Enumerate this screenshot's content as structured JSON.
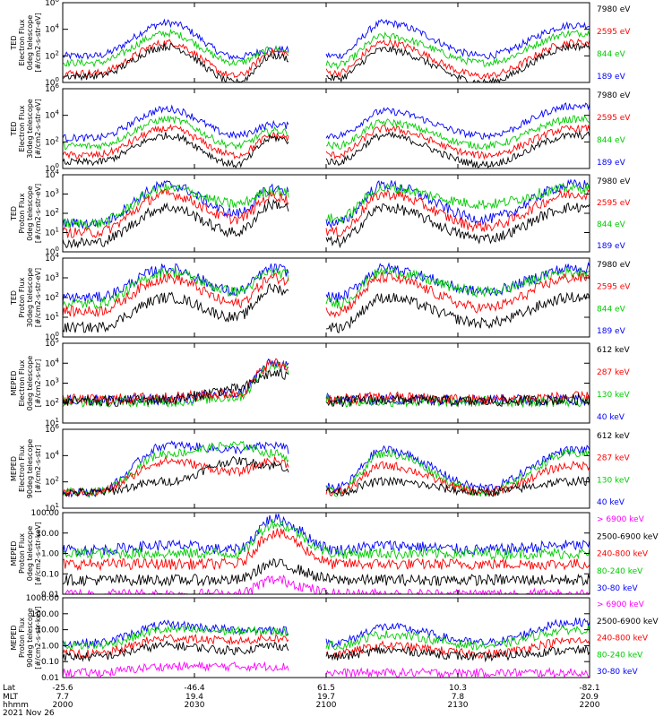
{
  "chart_data": {
    "type": "line",
    "x_axis": {
      "rows": [
        {
          "label": "Lat",
          "values": [
            "-25.6",
            "-46.4",
            "61.5",
            "10.3",
            "-82.1"
          ]
        },
        {
          "label": "MLT",
          "values": [
            "7.7",
            "19.4",
            "19.7",
            "7.8",
            "20.9"
          ]
        },
        {
          "label": "hhmm",
          "values": [
            "2000",
            "2030",
            "2100",
            "2130",
            "2200"
          ]
        }
      ],
      "date": "2021 Nov 26",
      "tick_times_hhmm": [
        "2000",
        "2030",
        "2100",
        "2130",
        "2200"
      ]
    },
    "panels": [
      {
        "ylabel": [
          "TED",
          "Electron Flux",
          "0deg telescope",
          "[#/cm2-s-str-eV]"
        ],
        "yscale": "log",
        "ylim": [
          1,
          1000000
        ],
        "ytick_labels": [
          "10^0",
          "10^2",
          "10^4",
          "10^6"
        ],
        "series": [
          {
            "name": "189 eV",
            "color": "#0000ff",
            "values": [
              100,
              30000,
              80,
              300,
              100,
              30000,
              100,
              20000
            ]
          },
          {
            "name": "844 eV",
            "color": "#00cc00",
            "values": [
              30,
              5000,
              30,
              300,
              20,
              3000,
              30,
              5000
            ]
          },
          {
            "name": "2595 eV",
            "color": "#ff0000",
            "values": [
              5,
              1000,
              3,
              200,
              5,
              1000,
              3,
              1000
            ]
          },
          {
            "name": "7980 eV",
            "color": "#000000",
            "values": [
              3,
              500,
              1,
              100,
              2,
              300,
              1,
              500
            ]
          }
        ]
      },
      {
        "ylabel": [
          "TED",
          "Electron Flux",
          "30deg telescope",
          "[#/cm2-s-str-eV]"
        ],
        "yscale": "log",
        "ylim": [
          1,
          1000000
        ],
        "ytick_labels": [
          "10^0",
          "10^2",
          "10^4",
          "10^6"
        ],
        "series": [
          {
            "name": "189 eV",
            "color": "#0000ff",
            "values": [
              200,
              30000,
              300,
              2000,
              300,
              20000,
              300,
              50000
            ]
          },
          {
            "name": "844 eV",
            "color": "#00cc00",
            "values": [
              50,
              5000,
              50,
              700,
              50,
              3000,
              50,
              5000
            ]
          },
          {
            "name": "2595 eV",
            "color": "#ff0000",
            "values": [
              10,
              1000,
              10,
              300,
              10,
              1000,
              10,
              1000
            ]
          },
          {
            "name": "7980 eV",
            "color": "#000000",
            "values": [
              3,
              300,
              2,
              200,
              3,
              300,
              2,
              300
            ]
          }
        ]
      },
      {
        "ylabel": [
          "TED",
          "Proton Flux",
          "0deg telescope",
          "[#/cm2-s-str-eV]"
        ],
        "yscale": "log",
        "ylim": [
          1,
          10000
        ],
        "ytick_labels": [
          "10^0",
          "10^1",
          "10^2",
          "10^3",
          "10^4"
        ],
        "series": [
          {
            "name": "189 eV",
            "color": "#0000ff",
            "values": [
              30,
              3000,
              100,
              2000,
              30,
              3000,
              50,
              3000
            ]
          },
          {
            "name": "844 eV",
            "color": "#00cc00",
            "values": [
              30,
              2000,
              300,
              1500,
              50,
              2000,
              300,
              2000
            ]
          },
          {
            "name": "2595 eV",
            "color": "#ff0000",
            "values": [
              10,
              1000,
              50,
              800,
              10,
              1000,
              20,
              1000
            ]
          },
          {
            "name": "7980 eV",
            "color": "#000000",
            "values": [
              3,
              200,
              10,
              300,
              3,
              200,
              5,
              200
            ]
          }
        ]
      },
      {
        "ylabel": [
          "TED",
          "Proton Flux",
          "30deg telescope",
          "[#/cm2-s-str-eV]"
        ],
        "yscale": "log",
        "ylim": [
          1,
          10000
        ],
        "ytick_labels": [
          "10^0",
          "10^1",
          "10^2",
          "10^3",
          "10^4"
        ],
        "series": [
          {
            "name": "189 eV",
            "color": "#0000ff",
            "values": [
              100,
              3000,
              200,
              3000,
              100,
              3000,
              200,
              3000
            ]
          },
          {
            "name": "844 eV",
            "color": "#00cc00",
            "values": [
              50,
              2000,
              200,
              2000,
              50,
              2000,
              200,
              2000
            ]
          },
          {
            "name": "2595 eV",
            "color": "#ff0000",
            "values": [
              20,
              1000,
              50,
              1000,
              20,
              1000,
              30,
              1000
            ]
          },
          {
            "name": "7980 eV",
            "color": "#000000",
            "values": [
              3,
              100,
              10,
              300,
              3,
              100,
              5,
              100
            ]
          }
        ]
      },
      {
        "ylabel": [
          "MEPED",
          "Electron Flux",
          "0deg telescope",
          "[#/cm2-s-str]"
        ],
        "yscale": "log",
        "ylim": [
          10,
          100000
        ],
        "ytick_labels": [
          "10^1",
          "10^2",
          "10^3",
          "10^4",
          "10^5"
        ],
        "series": [
          {
            "name": "40 keV",
            "color": "#0000ff",
            "values": [
              150,
              150,
              300,
              10000,
              150,
              150,
              150,
              150
            ]
          },
          {
            "name": "130 keV",
            "color": "#00cc00",
            "values": [
              120,
              120,
              200,
              8000,
              120,
              120,
              120,
              120
            ]
          },
          {
            "name": "287 keV",
            "color": "#ff0000",
            "values": [
              150,
              200,
              300,
              10000,
              150,
              200,
              150,
              200
            ]
          },
          {
            "name": "612 keV",
            "color": "#000000",
            "values": [
              120,
              150,
              500,
              3000,
              120,
              150,
              120,
              150
            ]
          }
        ]
      },
      {
        "ylabel": [
          "MEPED",
          "Electron Flux",
          "90deg telescope",
          "[#/cm2-s-str]"
        ],
        "yscale": "log",
        "ylim": [
          10,
          1000000
        ],
        "ytick_labels": [
          "10^1",
          "10^2",
          "10^4",
          "10^6"
        ],
        "series": [
          {
            "name": "40 keV",
            "color": "#0000ff",
            "values": [
              100,
              100000,
              50000,
              100000,
              200,
              50000,
              200,
              50000
            ]
          },
          {
            "name": "130 keV",
            "color": "#00cc00",
            "values": [
              100,
              30000,
              100000,
              30000,
              100,
              30000,
              100,
              30000
            ]
          },
          {
            "name": "287 keV",
            "color": "#ff0000",
            "values": [
              100,
              10000,
              2000,
              10000,
              100,
              5000,
              100,
              5000
            ]
          },
          {
            "name": "612 keV",
            "color": "#000000",
            "values": [
              100,
              500,
              10000,
              5000,
              100,
              500,
              100,
              500
            ]
          }
        ]
      },
      {
        "ylabel": [
          "MEPED",
          "Proton Flux",
          "0deg telescope",
          "[#/cm2-s-str-keV]"
        ],
        "yscale": "log",
        "ylim": [
          0.01,
          100
        ],
        "ytick_labels": [
          "0.01",
          "0.10",
          "1.00",
          "10.00",
          "100.00"
        ],
        "series": [
          {
            "name": "30-80 keV",
            "color": "#0000ff",
            "values": [
              1.5,
              2.5,
              1.5,
              50,
              1.5,
              2.5,
              1.5,
              2.5
            ]
          },
          {
            "name": "80-240 keV",
            "color": "#00cc00",
            "values": [
              1,
              1,
              1,
              30,
              1,
              1,
              1,
              1
            ]
          },
          {
            "name": "240-800 keV",
            "color": "#ff0000",
            "values": [
              0.3,
              0.3,
              0.3,
              10,
              0.3,
              0.3,
              0.3,
              0.3
            ]
          },
          {
            "name": "2500-6900 keV",
            "color": "#000000",
            "values": [
              0.05,
              0.05,
              0.05,
              0.3,
              0.05,
              0.05,
              0.05,
              0.05
            ]
          },
          {
            "name": "> 6900 keV",
            "color": "#ff00ff",
            "values": [
              0.01,
              0.01,
              0.01,
              0.05,
              0.01,
              0.01,
              0.01,
              0.01
            ]
          }
        ]
      },
      {
        "ylabel": [
          "MEPED",
          "Proton Flux",
          "90deg telescope",
          "[#/cm2-s-str-keV]"
        ],
        "yscale": "log",
        "ylim": [
          0.01,
          1000
        ],
        "ytick_labels": [
          "0.01",
          "0.10",
          "1.00",
          "10.00",
          "100.00",
          "1000.00"
        ],
        "series": [
          {
            "name": "30-80 keV",
            "color": "#0000ff",
            "values": [
              1.5,
              20,
              10,
              10,
              1.5,
              15,
              1.5,
              30
            ]
          },
          {
            "name": "80-240 keV",
            "color": "#00cc00",
            "values": [
              1,
              10,
              8,
              8,
              1,
              5,
              1,
              10
            ]
          },
          {
            "name": "240-800 keV",
            "color": "#ff0000",
            "values": [
              0.3,
              3,
              2,
              3,
              0.3,
              1,
              0.3,
              2
            ]
          },
          {
            "name": "2500-6900 keV",
            "color": "#000000",
            "values": [
              0.2,
              1,
              0.5,
              1,
              0.2,
              0.5,
              0.2,
              0.5
            ]
          },
          {
            "name": "> 6900 keV",
            "color": "#ff00ff",
            "values": [
              0.02,
              0.05,
              0.05,
              0.05,
              0.02,
              0.02,
              0.02,
              0.02
            ]
          }
        ]
      }
    ]
  }
}
